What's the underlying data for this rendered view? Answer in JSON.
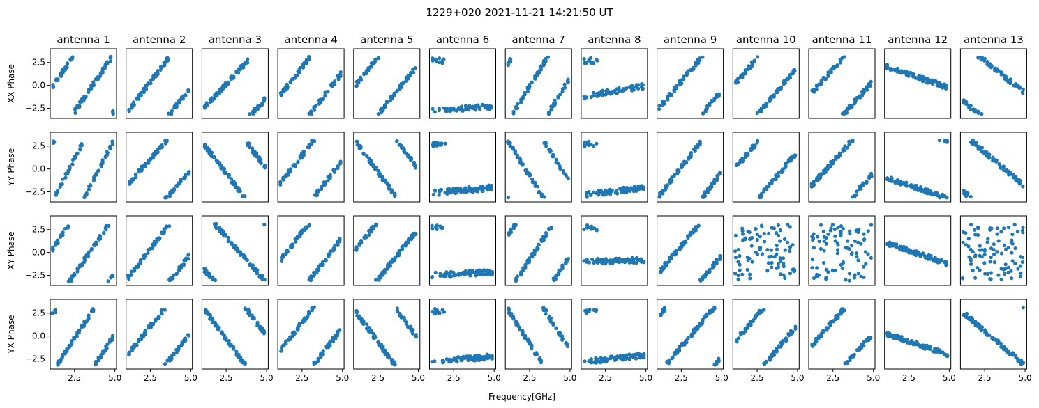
{
  "suptitle": "1229+020 2021-11-21 14:21:50 UT",
  "xlabel": "Frequency[GHz]",
  "colors": {
    "marker": "#1f77b4",
    "axes": "#000000",
    "background": "#ffffff"
  },
  "chart_data": {
    "type": "scatter",
    "grid": false,
    "rows": [
      "XX Phase",
      "YY Phase",
      "XY Phase",
      "YX Phase"
    ],
    "columns": [
      "antenna 1",
      "antenna 2",
      "antenna 3",
      "antenna 4",
      "antenna 5",
      "antenna 6",
      "antenna 7",
      "antenna 8",
      "antenna 9",
      "antenna 10",
      "antenna 11",
      "antenna 12",
      "antenna 13"
    ],
    "xlim": [
      1.0,
      5.1
    ],
    "ylim": [
      -3.6,
      4.0
    ],
    "xticks": [
      2.5,
      5.0
    ],
    "xtick_labels": [
      "2.5",
      "5.0"
    ],
    "yticks": [
      2.5,
      0.0,
      -2.5
    ],
    "ytick_labels": [
      "2.5",
      "0.0",
      "−2.5"
    ],
    "panels": [
      [
        {
          "model": "wrap",
          "slope": 2.6,
          "offset": 0.0
        },
        {
          "model": "wrap",
          "slope": 2.3,
          "offset": -2.6
        },
        {
          "model": "wrap",
          "slope": 1.9,
          "offset": -2.3
        },
        {
          "model": "wrap",
          "slope": 2.3,
          "offset": -1.0
        },
        {
          "model": "wrap",
          "slope": 2.2,
          "offset": 0.2
        },
        {
          "model": "flat",
          "level": -2.7,
          "slope": 0.1
        },
        {
          "model": "wrap",
          "slope": 2.9,
          "offset": 2.4
        },
        {
          "model": "flat",
          "level": -1.2,
          "slope": 0.3
        },
        {
          "model": "wrap",
          "slope": 2.1,
          "offset": -2.3
        },
        {
          "model": "wrap",
          "slope": 2.1,
          "offset": 0.3
        },
        {
          "model": "wrap",
          "slope": 2.0,
          "offset": -0.8
        },
        {
          "model": "wrap",
          "slope": -0.6,
          "offset": 2.0
        },
        {
          "model": "wrap",
          "slope": -1.4,
          "offset": -1.8
        }
      ],
      [
        {
          "model": "wrap",
          "slope": 3.4,
          "offset": 3.0
        },
        {
          "model": "wrap",
          "slope": 2.0,
          "offset": -1.5
        },
        {
          "model": "wrap",
          "slope": -2.3,
          "offset": 2.5
        },
        {
          "model": "wrap",
          "slope": 2.3,
          "offset": -1.5
        },
        {
          "model": "wrap",
          "slope": -2.4,
          "offset": 2.8
        },
        {
          "model": "flat",
          "level": -2.6,
          "slope": 0.15
        },
        {
          "model": "wrap",
          "slope": -2.8,
          "offset": 2.9
        },
        {
          "model": "flat",
          "level": -2.8,
          "slope": 0.2
        },
        {
          "model": "wrap",
          "slope": 2.3,
          "offset": -2.8
        },
        {
          "model": "wrap",
          "slope": 2.1,
          "offset": 0.2
        },
        {
          "model": "wrap",
          "slope": 2.0,
          "offset": -1.8
        },
        {
          "model": "wrap",
          "slope": -0.6,
          "offset": -1.0
        },
        {
          "model": "wrap",
          "slope": -1.5,
          "offset": -2.5
        }
      ],
      [
        {
          "model": "wrap",
          "slope": 2.6,
          "offset": 0.5
        },
        {
          "model": "wrap",
          "slope": 2.3,
          "offset": -2.6
        },
        {
          "model": "wrap",
          "slope": -2.0,
          "offset": -2.0
        },
        {
          "model": "wrap",
          "slope": 2.3,
          "offset": -0.8
        },
        {
          "model": "wrap",
          "slope": 2.2,
          "offset": 0.5
        },
        {
          "model": "flat",
          "level": -2.5,
          "slope": 0.1
        },
        {
          "model": "wrap",
          "slope": 2.7,
          "offset": 2.0
        },
        {
          "model": "flat",
          "level": -1.0,
          "slope": 0.05
        },
        {
          "model": "wrap",
          "slope": 2.1,
          "offset": -2.0
        },
        {
          "model": "random"
        },
        {
          "model": "random"
        },
        {
          "model": "wrap",
          "slope": -0.6,
          "offset": 1.0
        },
        {
          "model": "random"
        }
      ],
      [
        {
          "model": "wrap",
          "slope": 2.7,
          "offset": 2.5
        },
        {
          "model": "wrap",
          "slope": 2.2,
          "offset": -1.8
        },
        {
          "model": "wrap",
          "slope": -2.4,
          "offset": 2.8
        },
        {
          "model": "wrap",
          "slope": 2.3,
          "offset": -1.5
        },
        {
          "model": "wrap",
          "slope": -2.4,
          "offset": 2.5
        },
        {
          "model": "flat",
          "level": -2.8,
          "slope": 0.15
        },
        {
          "model": "wrap",
          "slope": -2.8,
          "offset": 2.8
        },
        {
          "model": "flat",
          "level": -2.8,
          "slope": 0.2
        },
        {
          "model": "wrap",
          "slope": 2.1,
          "offset": 2.4
        },
        {
          "model": "wrap",
          "slope": 2.1,
          "offset": -0.5
        },
        {
          "model": "wrap",
          "slope": 2.0,
          "offset": -1.0
        },
        {
          "model": "wrap",
          "slope": -0.6,
          "offset": 0.2
        },
        {
          "model": "wrap",
          "slope": -1.5,
          "offset": 2.5
        }
      ]
    ]
  }
}
